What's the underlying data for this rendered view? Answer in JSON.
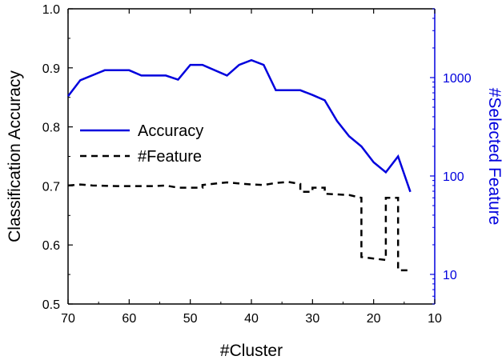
{
  "chart_data": {
    "type": "line",
    "xlabel": "#Cluster",
    "ylabel_left": "Classification Accuracy",
    "ylabel_right": "#Selected Feature",
    "xlim": [
      70,
      10
    ],
    "x_ticks": [
      "70",
      "60",
      "50",
      "40",
      "30",
      "20",
      "10"
    ],
    "ylim_left": [
      0.5,
      1.0
    ],
    "y_left_ticks": [
      "0.5",
      "0.6",
      "0.7",
      "0.8",
      "0.9",
      "1.0"
    ],
    "ylim_right": [
      5,
      5000
    ],
    "y_right_scale": "log",
    "y_right_ticks": [
      "10",
      "100",
      "1000"
    ],
    "grid": false,
    "legend_position": "middle-left",
    "colors": {
      "accuracy": "#0000dd",
      "feature": "#000000",
      "right_axis": "#0000dd"
    },
    "series": [
      {
        "name": "Accuracy",
        "axis": "left",
        "style": "solid",
        "points": [
          [
            70,
            0.852
          ],
          [
            68,
            0.879
          ],
          [
            64,
            0.896
          ],
          [
            60,
            0.896
          ],
          [
            58,
            0.887
          ],
          [
            54,
            0.887
          ],
          [
            52,
            0.88
          ],
          [
            50,
            0.905
          ],
          [
            48,
            0.905
          ],
          [
            44,
            0.887
          ],
          [
            42,
            0.905
          ],
          [
            40,
            0.913
          ],
          [
            38,
            0.905
          ],
          [
            36,
            0.862
          ],
          [
            32,
            0.862
          ],
          [
            30,
            0.854
          ],
          [
            28,
            0.845
          ],
          [
            26,
            0.81
          ],
          [
            24,
            0.784
          ],
          [
            22,
            0.767
          ],
          [
            20,
            0.74
          ],
          [
            18,
            0.723
          ],
          [
            16,
            0.75
          ],
          [
            14,
            0.69
          ]
        ]
      },
      {
        "name": "#Feature",
        "axis": "right",
        "style": "dashed",
        "points": [
          [
            70,
            80
          ],
          [
            68,
            82
          ],
          [
            66,
            80
          ],
          [
            62,
            79
          ],
          [
            56,
            79
          ],
          [
            54,
            80
          ],
          [
            52,
            76
          ],
          [
            48,
            76
          ],
          [
            48,
            81
          ],
          [
            44,
            86
          ],
          [
            40,
            82
          ],
          [
            38,
            81
          ],
          [
            36,
            85
          ],
          [
            34,
            87
          ],
          [
            32,
            83
          ],
          [
            32,
            69
          ],
          [
            30,
            69
          ],
          [
            30,
            76
          ],
          [
            28,
            76
          ],
          [
            28,
            66
          ],
          [
            24,
            64
          ],
          [
            22,
            60
          ],
          [
            22,
            15
          ],
          [
            18,
            14
          ],
          [
            18,
            60
          ],
          [
            16,
            60
          ],
          [
            16,
            11
          ],
          [
            14,
            11
          ]
        ]
      }
    ]
  }
}
